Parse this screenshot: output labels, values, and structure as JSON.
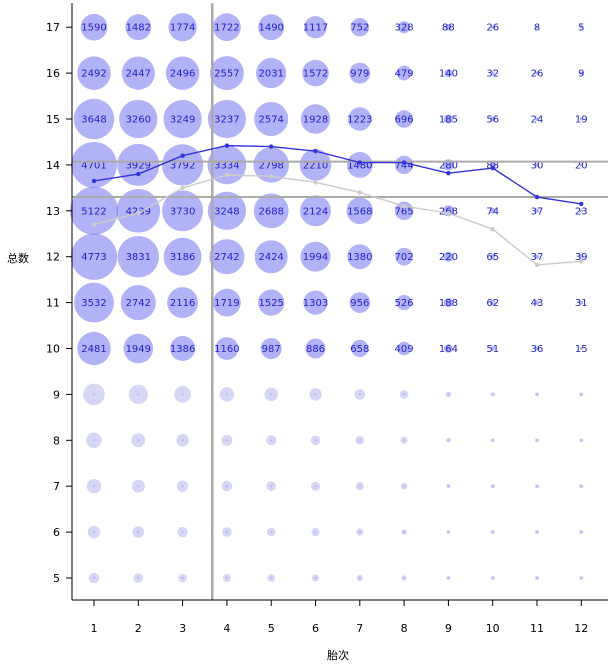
{
  "chart_data": {
    "type": "scatter",
    "subtype": "bubble-grid",
    "xlabel": "胎次",
    "ylabel": "总数",
    "x_ticks": [
      1,
      2,
      3,
      4,
      5,
      6,
      7,
      8,
      9,
      10,
      11,
      12
    ],
    "y_ticks": [
      5,
      6,
      7,
      8,
      9,
      10,
      11,
      12,
      13,
      14,
      15,
      16,
      17
    ],
    "xlim": [
      0.6,
      12.5
    ],
    "ylim": [
      4.5,
      17.55
    ],
    "grid": false,
    "colors": {
      "bubble": "#6666ee",
      "bubble_faint": "#bbbbee",
      "label": "#2222cc",
      "line_primary": "#3333dd",
      "line_secondary": "#cccccc",
      "ref_lines": "#aaaaaa"
    },
    "bubbles": [
      {
        "y": 17,
        "counts": [
          "1590",
          "1482",
          "1774",
          "1722",
          "1490",
          "1117",
          "752",
          "328",
          "88",
          "26",
          "8",
          "5"
        ]
      },
      {
        "y": 16,
        "counts": [
          "2492",
          "2447",
          "2496",
          "2557",
          "2031",
          "1572",
          "979",
          "479",
          "140",
          "32",
          "26",
          "9"
        ]
      },
      {
        "y": 15,
        "counts": [
          "3648",
          "3260",
          "3249",
          "3237",
          "2574",
          "1928",
          "1223",
          "696",
          "185",
          "56",
          "24",
          "19"
        ]
      },
      {
        "y": 14,
        "counts": [
          "4701",
          "3929",
          "3792",
          "3334",
          "2798",
          "2210",
          "1480",
          "744",
          "280",
          "88",
          "30",
          "20"
        ]
      },
      {
        "y": 13,
        "counts": [
          "5122",
          "4239",
          "3730",
          "3248",
          "2688",
          "2124",
          "1568",
          "765",
          "268",
          "74",
          "37",
          "23"
        ]
      },
      {
        "y": 12,
        "counts": [
          "4773",
          "3831",
          "3186",
          "2742",
          "2424",
          "1994",
          "1380",
          "702",
          "220",
          "65",
          "37",
          "39"
        ]
      },
      {
        "y": 11,
        "counts": [
          "3532",
          "2742",
          "2116",
          "1719",
          "1525",
          "1303",
          "956",
          "526",
          "188",
          "62",
          "43",
          "31"
        ]
      },
      {
        "y": 10,
        "counts": [
          "2481",
          "1949",
          "1386",
          "1160",
          "987",
          "886",
          "658",
          "409",
          "164",
          "51",
          "36",
          "15"
        ]
      }
    ],
    "faint_bubbles": [
      {
        "y": 9,
        "size": [
          0.45,
          0.4,
          0.35,
          0.3,
          0.28,
          0.26,
          0.22,
          0.18,
          0.12,
          0.09,
          0.07,
          0.06
        ]
      },
      {
        "y": 8,
        "size": [
          0.32,
          0.29,
          0.26,
          0.23,
          0.21,
          0.2,
          0.18,
          0.15,
          0.1,
          0.08,
          0.06,
          0.05
        ]
      },
      {
        "y": 7,
        "size": [
          0.3,
          0.27,
          0.24,
          0.22,
          0.2,
          0.19,
          0.17,
          0.14,
          0.09,
          0.07,
          0.06,
          0.05
        ]
      },
      {
        "y": 6,
        "size": [
          0.26,
          0.24,
          0.22,
          0.2,
          0.18,
          0.17,
          0.15,
          0.12,
          0.08,
          0.06,
          0.05,
          0.04
        ]
      },
      {
        "y": 5,
        "size": [
          0.22,
          0.2,
          0.18,
          0.17,
          0.16,
          0.15,
          0.13,
          0.11,
          0.07,
          0.06,
          0.05,
          0.04
        ]
      }
    ],
    "series": [
      {
        "x": [
          1,
          2,
          3,
          4,
          5,
          6,
          7,
          8,
          9,
          10,
          11,
          12
        ],
        "values": [
          13.65,
          13.8,
          14.2,
          14.42,
          14.4,
          14.3,
          14.05,
          14.05,
          13.82,
          13.93,
          13.3,
          13.15
        ],
        "style": "primary"
      },
      {
        "x": [
          1,
          2,
          3,
          4,
          5,
          6,
          7,
          8,
          9,
          10,
          11,
          12
        ],
        "values": [
          12.7,
          12.95,
          13.5,
          13.78,
          13.75,
          13.62,
          13.4,
          13.1,
          12.95,
          12.6,
          11.82,
          11.9
        ],
        "style": "secondary"
      }
    ],
    "reference_lines": {
      "horizontal": [
        14.07,
        13.3
      ],
      "vertical": [
        3.67
      ]
    }
  }
}
